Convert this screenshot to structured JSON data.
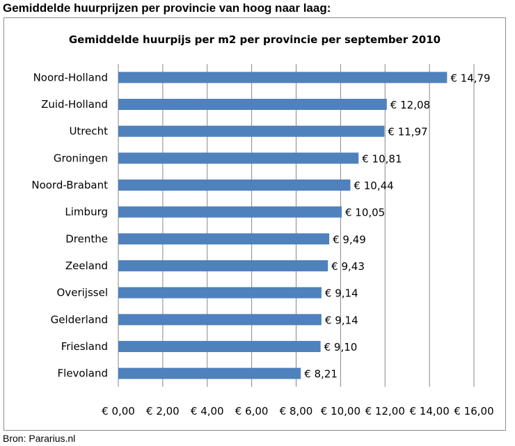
{
  "heading": "Gemiddelde huurprijzen per provincie van hoog naar laag:",
  "source": "Bron: Pararius.nl",
  "colors": {
    "bar": "#4f81bd",
    "grid": "#868686"
  },
  "chart_data": {
    "type": "bar",
    "orientation": "horizontal",
    "title": "Gemiddelde huurpijs per m2 per provincie per september 2010",
    "xlabel": "",
    "ylabel": "",
    "xlim": [
      0,
      16
    ],
    "x_ticks": [
      0,
      2,
      4,
      6,
      8,
      10,
      12,
      14,
      16
    ],
    "x_tick_labels": [
      "€ 0,00",
      "€ 2,00",
      "€ 4,00",
      "€ 6,00",
      "€ 8,00",
      "€ 10,00",
      "€ 12,00",
      "€ 14,00",
      "€ 16,00"
    ],
    "grid": "vertical major gridlines",
    "legend": "none",
    "categories": [
      "Noord-Holland",
      "Zuid-Holland",
      "Utrecht",
      "Groningen",
      "Noord-Brabant",
      "Limburg",
      "Drenthe",
      "Zeeland",
      "Overijssel",
      "Gelderland",
      "Friesland",
      "Flevoland"
    ],
    "values": [
      14.79,
      12.08,
      11.97,
      10.81,
      10.44,
      10.05,
      9.49,
      9.43,
      9.14,
      9.14,
      9.1,
      8.21
    ],
    "value_labels": [
      "€ 14,79",
      "€ 12,08",
      "€ 11,97",
      "€ 10,81",
      "€ 10,44",
      "€ 10,05",
      "€ 9,49",
      "€ 9,43",
      "€ 9,14",
      "€ 9,14",
      "€ 9,10",
      "€ 8,21"
    ]
  }
}
